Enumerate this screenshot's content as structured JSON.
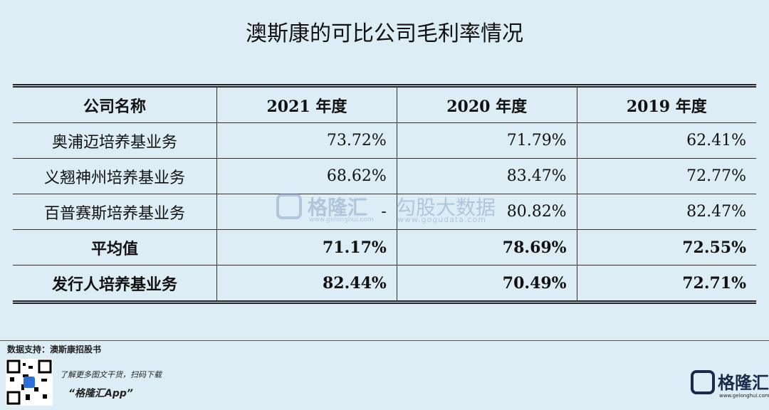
{
  "header": {
    "title": "澳斯康的可比公司毛利率情况"
  },
  "table": {
    "header": [
      "公司名称",
      "2021 年度",
      "2020 年度",
      "2019 年度"
    ],
    "rows": [
      [
        "奥浦迈培养基业务",
        "73.72%",
        "71.79%",
        "62.41%"
      ],
      [
        "义翘神州培养基业务",
        "68.62%",
        "83.47%",
        "72.77%"
      ],
      [
        "百普赛斯培养基业务",
        "-",
        "80.82%",
        "82.47%"
      ],
      [
        "平均值",
        "71.17%",
        "78.69%",
        "72.55%"
      ],
      [
        "发行人培养基业务",
        "82.44%",
        "70.49%",
        "72.71%"
      ]
    ]
  },
  "watermark": {
    "brand": "格隆汇",
    "brand_url": "www.gelonghui.com",
    "partner": "勾股大数据",
    "partner_url": "www.gogudata.com"
  },
  "footer": {
    "source": "数据支持：澳斯康招股书",
    "promo": "了解更多图文干货，扫码下载",
    "app": "“格隆汇App”",
    "logo": "格隆汇",
    "logo_url": "www.gelonghui.com"
  }
}
